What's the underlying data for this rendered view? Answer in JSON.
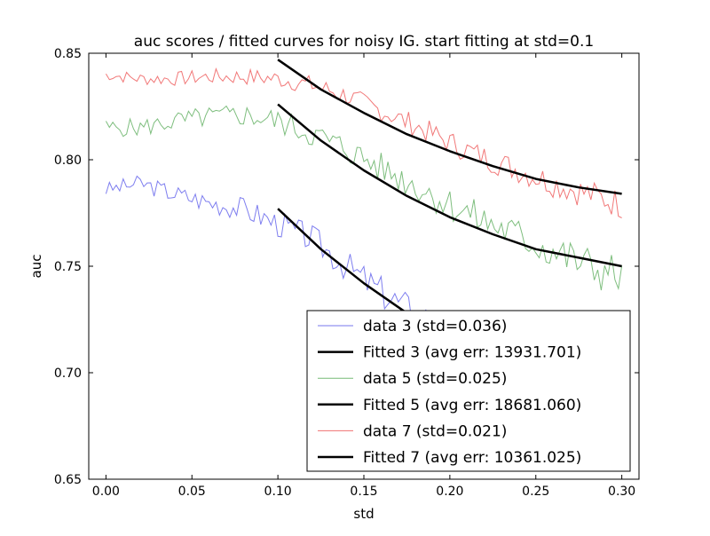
{
  "chart_data": {
    "type": "line",
    "title": "auc scores / fitted curves for noisy IG. start fitting at std=0.1",
    "xlabel": "std",
    "ylabel": "auc",
    "xlim": [
      -0.01,
      0.31
    ],
    "ylim": [
      0.65,
      0.85
    ],
    "xticks": [
      0.0,
      0.05,
      0.1,
      0.15,
      0.2,
      0.25,
      0.3
    ],
    "xtick_labels": [
      "0.00",
      "0.05",
      "0.10",
      "0.15",
      "0.20",
      "0.25",
      "0.30"
    ],
    "yticks": [
      0.65,
      0.7,
      0.75,
      0.8,
      0.85
    ],
    "ytick_labels": [
      "0.65",
      "0.70",
      "0.75",
      "0.80",
      "0.85"
    ],
    "legend_position": "lower-right",
    "legend": [
      {
        "label": "data 3 (std=0.036)",
        "color": "#7777ee",
        "width": 1
      },
      {
        "label": "Fitted 3 (avg err: 13931.701)",
        "color": "#000000",
        "width": 2.5
      },
      {
        "label": "data 5 (std=0.025)",
        "color": "#77bb77",
        "width": 1
      },
      {
        "label": "Fitted 5 (avg err: 18681.060)",
        "color": "#000000",
        "width": 2.5
      },
      {
        "label": "data 7 (std=0.021)",
        "color": "#f07070",
        "width": 1
      },
      {
        "label": "Fitted 7 (avg err: 10361.025)",
        "color": "#000000",
        "width": 2.5
      }
    ],
    "series": [
      {
        "name": "data 3 (std=0.036)",
        "kind": "data",
        "color": "#7777ee",
        "x": [
          0.0,
          0.02,
          0.04,
          0.06,
          0.08,
          0.1,
          0.12,
          0.14,
          0.16,
          0.18,
          0.2
        ],
        "y": [
          0.786,
          0.789,
          0.784,
          0.78,
          0.777,
          0.77,
          0.763,
          0.75,
          0.738,
          0.728,
          0.72
        ],
        "noise": 0.0035,
        "seed": 3
      },
      {
        "name": "Fitted 3 (avg err: 13931.701)",
        "kind": "fit",
        "color": "#000000",
        "x": [
          0.1,
          0.125,
          0.15,
          0.175,
          0.2,
          0.225,
          0.25,
          0.275,
          0.3
        ],
        "y": [
          0.777,
          0.758,
          0.742,
          0.728,
          0.716,
          0.706,
          0.697,
          0.689,
          0.682
        ]
      },
      {
        "name": "data 5 (std=0.025)",
        "kind": "data",
        "color": "#77bb77",
        "x": [
          0.0,
          0.02,
          0.04,
          0.06,
          0.08,
          0.1,
          0.12,
          0.14,
          0.16,
          0.18,
          0.2,
          0.22,
          0.24,
          0.26,
          0.28,
          0.3
        ],
        "y": [
          0.815,
          0.815,
          0.818,
          0.82,
          0.821,
          0.818,
          0.812,
          0.805,
          0.796,
          0.788,
          0.779,
          0.771,
          0.764,
          0.757,
          0.75,
          0.745
        ],
        "noise": 0.004,
        "seed": 5
      },
      {
        "name": "Fitted 5 (avg err: 18681.060)",
        "kind": "fit",
        "color": "#000000",
        "x": [
          0.1,
          0.125,
          0.15,
          0.175,
          0.2,
          0.225,
          0.25,
          0.275,
          0.3
        ],
        "y": [
          0.826,
          0.809,
          0.795,
          0.783,
          0.773,
          0.765,
          0.758,
          0.754,
          0.75
        ]
      },
      {
        "name": "data 7 (std=0.021)",
        "kind": "data",
        "color": "#f07070",
        "x": [
          0.0,
          0.02,
          0.04,
          0.06,
          0.08,
          0.1,
          0.12,
          0.14,
          0.16,
          0.18,
          0.2,
          0.22,
          0.24,
          0.26,
          0.28,
          0.3
        ],
        "y": [
          0.84,
          0.838,
          0.838,
          0.839,
          0.839,
          0.838,
          0.835,
          0.83,
          0.823,
          0.816,
          0.808,
          0.801,
          0.795,
          0.789,
          0.784,
          0.779
        ],
        "noise": 0.0028,
        "seed": 7
      },
      {
        "name": "Fitted 7 (avg err: 10361.025)",
        "kind": "fit",
        "color": "#000000",
        "x": [
          0.1,
          0.125,
          0.15,
          0.175,
          0.2,
          0.225,
          0.25,
          0.275,
          0.3
        ],
        "y": [
          0.847,
          0.833,
          0.822,
          0.812,
          0.804,
          0.797,
          0.791,
          0.787,
          0.784
        ]
      }
    ]
  }
}
